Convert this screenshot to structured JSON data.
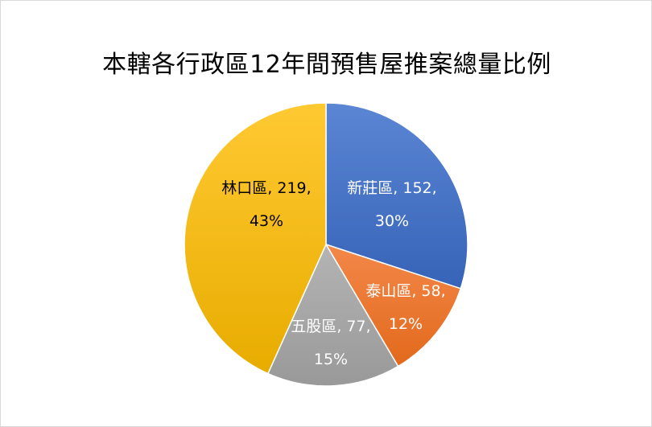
{
  "chart_data": {
    "type": "pie",
    "title": "本轄各行政區12年間預售屋推案總量比例",
    "slices": [
      {
        "label": "新莊區",
        "value": 152,
        "percent": "30%",
        "color": "#4472c4",
        "label_color": "#ffffff",
        "label_line1": "新莊區, 152,"
      },
      {
        "label": "泰山區",
        "value": 58,
        "percent": "12%",
        "color": "#ed7d31",
        "label_color": "#ffffff",
        "label_line1": "泰山區, 58,"
      },
      {
        "label": "五股區",
        "value": 77,
        "percent": "15%",
        "color": "#a5a5a5",
        "label_color": "#ffffff",
        "label_line1": "五股區, 77,"
      },
      {
        "label": "林口區",
        "value": 219,
        "percent": "43%",
        "color": "#ffc000",
        "label_color": "#000000",
        "label_line1": "林口區, 219,"
      }
    ],
    "legend": "none"
  }
}
